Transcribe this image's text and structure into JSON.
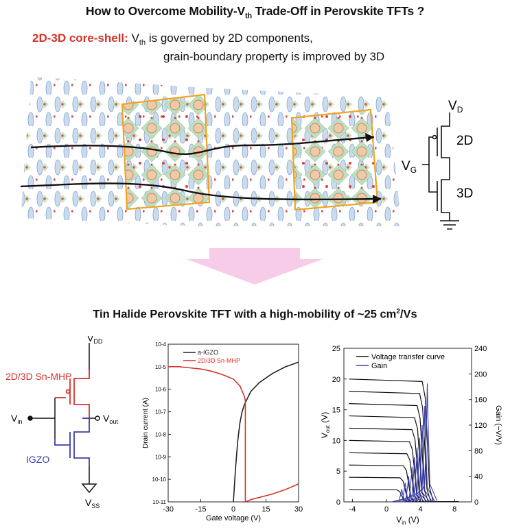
{
  "header": {
    "title_pre": "How to Overcome Mobility-V",
    "title_sub": "th",
    "title_post": " Trade-Off in Perovskite TFTs ?"
  },
  "core_shell": {
    "label": "2D-3D core-shell",
    "colon": ":",
    "line1_pre": " V",
    "line1_sub": "th",
    "line1_post": " is governed  by 2D components,",
    "line2": "grain-boundary property is improved by 3D"
  },
  "top_circuit": {
    "vd": "V",
    "vd_sub": "D",
    "vg": "V",
    "vg_sub": "G",
    "upper": "2D",
    "lower": "3D"
  },
  "section2": {
    "title_pre": "Tin Halide Perovskite TFT with a high-mobility of ~25 cm",
    "title_sup": "2",
    "title_post": "/Vs"
  },
  "inverter": {
    "vdd": "V",
    "vdd_sub": "DD",
    "vin": "V",
    "vin_sub": "in",
    "vout": "V",
    "vout_sub": "out",
    "vss": "V",
    "vss_sub": "SS",
    "ptype": "2D/3D Sn-MHP",
    "ntype": "IGZO",
    "colors": {
      "ptype": "#d6322a",
      "ntype": "#3a3fa8"
    }
  },
  "chart_data": [
    {
      "type": "line",
      "title": "",
      "xlabel": "Gate voltage (V)",
      "ylabel": "Drain current (A)",
      "xlim": [
        -30,
        30
      ],
      "ylim_log10": [
        -11,
        -4
      ],
      "x_ticks": [
        "-30",
        "-15",
        "0",
        "15",
        "30"
      ],
      "y_ticks": [
        "10-4",
        "10-5",
        "10-6",
        "10-7",
        "10-8",
        "10-9",
        "10-10",
        "10-11"
      ],
      "y_log_scale": true,
      "legend_position": "top-left",
      "series": [
        {
          "name": "a-IGZO",
          "color": "#222222",
          "x": [
            0,
            1,
            2,
            3,
            4,
            5,
            8,
            12,
            18,
            24,
            30
          ],
          "y": [
            -11,
            -9.5,
            -8.3,
            -7.5,
            -7.0,
            -6.7,
            -6.1,
            -5.7,
            -5.3,
            -5.0,
            -4.8
          ]
        },
        {
          "name": "2D/3D Sn-MHP",
          "color": "#d6322a",
          "x": [
            -30,
            -25,
            -20,
            -15,
            -10,
            -5,
            0,
            3,
            5,
            5.5,
            5.5,
            8,
            12,
            18,
            24,
            30
          ],
          "y": [
            -5.0,
            -5.0,
            -5.05,
            -5.1,
            -5.2,
            -5.35,
            -5.55,
            -5.85,
            -6.3,
            -6.5,
            -11,
            -10.9,
            -10.8,
            -10.65,
            -10.45,
            -10.2
          ]
        }
      ]
    },
    {
      "type": "line",
      "title": "",
      "xlabel": "V",
      "xlabel_sub": "in",
      "xlabel_unit": " (V)",
      "ylabel": "V",
      "ylabel_sub": "out",
      "ylabel_unit": " (V)",
      "y2label": "Gain (−V/V)",
      "xlim": [
        -5,
        10
      ],
      "ylim": [
        0,
        25
      ],
      "y2lim": [
        0,
        240
      ],
      "x_ticks": [
        -4,
        0,
        4,
        8
      ],
      "y_ticks": [
        0,
        5,
        10,
        15,
        20,
        25
      ],
      "y2_ticks": [
        0,
        40,
        80,
        120,
        160,
        200,
        240
      ],
      "legend_position": "top-left",
      "series": [
        {
          "name": "Voltage transfer curve",
          "color": "#111111",
          "family": "VDD sweep",
          "vdd": [
            2,
            4,
            6,
            8,
            10,
            12,
            14,
            16,
            18,
            20
          ]
        },
        {
          "name": "Gain",
          "color": "#3a3fa8",
          "peak_x": [
            1.8,
            2.2,
            2.6,
            3.0,
            3.3,
            3.6,
            3.9,
            4.2,
            4.5,
            4.8
          ],
          "peak_gain": [
            20,
            30,
            40,
            55,
            70,
            85,
            100,
            120,
            150,
            185
          ]
        }
      ]
    }
  ]
}
